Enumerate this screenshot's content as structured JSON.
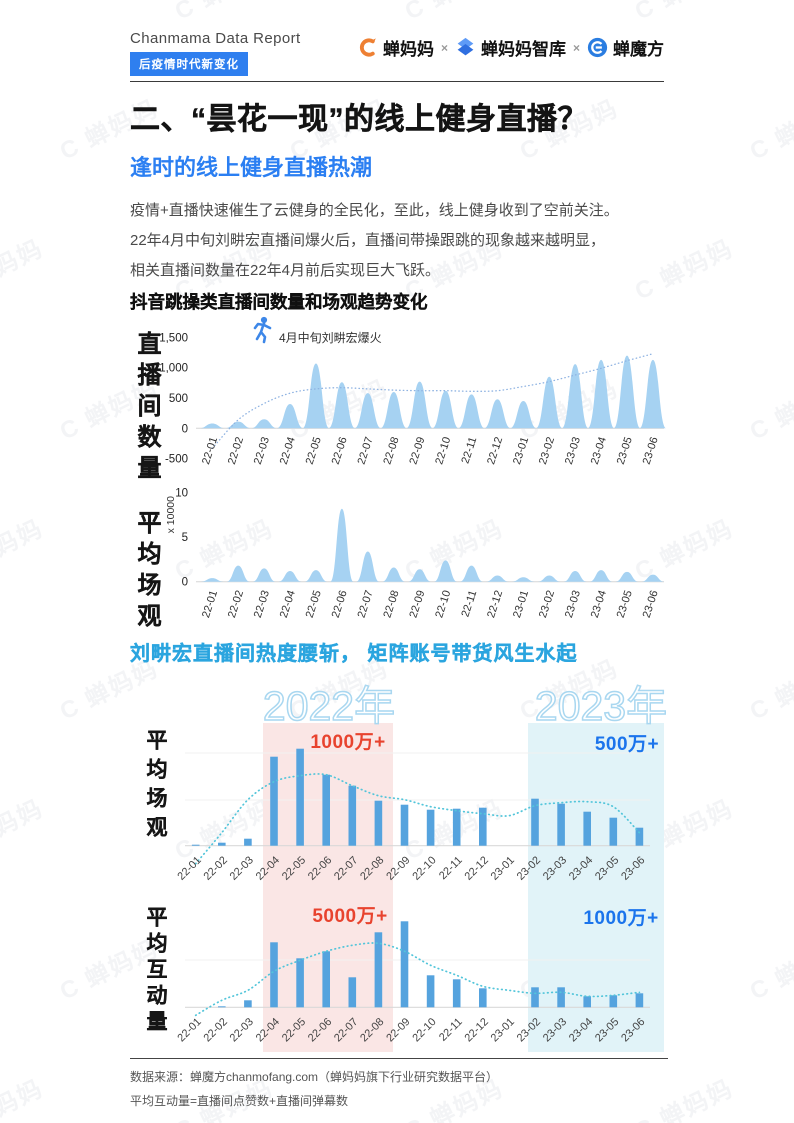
{
  "header": {
    "brand": "Chanmama Data Report",
    "tag": "后疫情时代新变化",
    "logos": [
      {
        "name": "蝉妈妈",
        "icon": "chanmama-orange-c"
      },
      {
        "name": "蝉妈妈智库",
        "icon": "zhiku-blue-diamond"
      },
      {
        "name": "蝉魔方",
        "icon": "mofang-blue-circle"
      }
    ],
    "separator": "×"
  },
  "title": "二、“昙花一现”的线上健身直播？",
  "subtitle": "逢时的线上健身直播热潮",
  "paragraph": "疫情+直播快速催生了云健身的全民化，至此，线上健身收到了空前关注。\n22年4月中旬刘畊宏直播间爆火后，直播间带操跟跳的现象越来越明显，\n相关直播间数量在22年4月前后实现巨大飞跃。",
  "section2_title": "刘畊宏直播间热度腰斩， 矩阵账号带货风生水起",
  "years_overlay": [
    "2022年",
    "2023年"
  ],
  "watermark_text": "C 蝉妈妈",
  "footer": {
    "source": "数据来源：蝉魔方chanmofang.com（蝉妈妈旗下行业研究数据平台）",
    "note": "平均互动量=直播间点赞数+直播间弹幕数"
  },
  "colors": {
    "tag_bg": "#2F7FEF",
    "subtitle_blue": "#2B7FF2",
    "section2_cyan": "#2BA5DF",
    "peak_fill": "#A6D2F2",
    "bar_fill": "#55A3DE",
    "trend1": "#8FB3E2",
    "trend34": "#52C5DA",
    "band_2022_pink": "#FAE6E5",
    "band_2023_cyan": "#E1F3F8",
    "label_red": "#E8432E",
    "label_blue": "#1B74EC",
    "year_outline": "#A9D7F0"
  },
  "chart_data": [
    {
      "type": "area",
      "title": "抖音跳操类直播间数量和场观趋势变化",
      "ylabel": "直播间数量",
      "ytick_labels": [
        "1,500",
        "1,000",
        "500",
        "0",
        "-500"
      ],
      "ytick_values": [
        1500,
        1000,
        500,
        0,
        -500
      ],
      "ylim": [
        -500,
        1500
      ],
      "categories": [
        "22-01",
        "22-02",
        "22-03",
        "22-04",
        "22-05",
        "22-06",
        "22-07",
        "22-08",
        "22-09",
        "22-10",
        "22-11",
        "22-12",
        "23-01",
        "23-02",
        "23-03",
        "23-04",
        "23-05",
        "23-06"
      ],
      "values": [
        80,
        110,
        150,
        400,
        1070,
        760,
        580,
        600,
        770,
        620,
        560,
        480,
        450,
        850,
        1060,
        1130,
        1200,
        1130
      ],
      "trend": [
        -330,
        140,
        410,
        580,
        650,
        670,
        650,
        630,
        620,
        620,
        610,
        620,
        690,
        770,
        880,
        990,
        1115,
        1230
      ],
      "annotation": "4月中旬刘畊宏爆火"
    },
    {
      "type": "area",
      "ylabel": "平均场观",
      "y_unit": "x 10000",
      "ytick_labels": [
        "10",
        "5",
        "0"
      ],
      "ytick_values": [
        10,
        5,
        0
      ],
      "ylim": [
        0,
        10
      ],
      "categories": [
        "22-01",
        "22-02",
        "22-03",
        "22-04",
        "22-05",
        "22-06",
        "22-07",
        "22-08",
        "22-09",
        "22-10",
        "22-11",
        "22-12",
        "23-01",
        "23-02",
        "23-03",
        "23-04",
        "23-05",
        "23-06"
      ],
      "values": [
        0.4,
        1.8,
        1.5,
        1.2,
        1.3,
        8.2,
        3.4,
        1.6,
        1.4,
        2.4,
        1.8,
        0.7,
        0.5,
        0.7,
        1.2,
        1.3,
        1.1,
        0.8
      ]
    },
    {
      "type": "bar",
      "ylabel": "平均场观",
      "unit": "relative-height",
      "categories": [
        "22-01",
        "22-02",
        "22-03",
        "22-04",
        "22-05",
        "22-06",
        "22-07",
        "22-08",
        "22-09",
        "22-10",
        "22-11",
        "22-12",
        "23-01",
        "23-02",
        "23-03",
        "23-04",
        "23-05",
        "23-06"
      ],
      "values": [
        1,
        3,
        7,
        89,
        97,
        71,
        60,
        45,
        41,
        36,
        37,
        38,
        0,
        47,
        42,
        34,
        28,
        18
      ],
      "trend": [
        -18,
        13,
        46,
        64,
        70,
        71,
        60,
        50,
        46,
        39,
        35,
        32,
        30,
        40,
        43,
        44,
        39,
        13
      ],
      "highlights": [
        {
          "label": "1000万+",
          "from": "22-04",
          "to": "22-08",
          "color": "#E8432E"
        },
        {
          "label": "500万+",
          "from": "23-02",
          "to": "23-06",
          "color": "#1B74EC"
        }
      ]
    },
    {
      "type": "bar",
      "ylabel": "平均互动量",
      "unit": "relative-height",
      "categories": [
        "22-01",
        "22-02",
        "22-03",
        "22-04",
        "22-05",
        "22-06",
        "22-07",
        "22-08",
        "22-09",
        "22-10",
        "22-11",
        "22-12",
        "23-01",
        "23-02",
        "23-03",
        "23-04",
        "23-05",
        "23-06"
      ],
      "values": [
        0,
        1,
        7,
        65,
        49,
        56,
        30,
        75,
        86,
        32,
        28,
        19,
        0,
        20,
        20,
        11,
        12,
        14
      ],
      "trend": [
        -8,
        7,
        17,
        36,
        47,
        56,
        62,
        64,
        56,
        42,
        32,
        21,
        17,
        14,
        15,
        11,
        12,
        15
      ],
      "highlights": [
        {
          "label": "5000万+",
          "from": "22-04",
          "to": "22-08",
          "color": "#E8432E"
        },
        {
          "label": "1000万+",
          "from": "23-02",
          "to": "23-06",
          "color": "#1B74EC"
        }
      ]
    }
  ]
}
